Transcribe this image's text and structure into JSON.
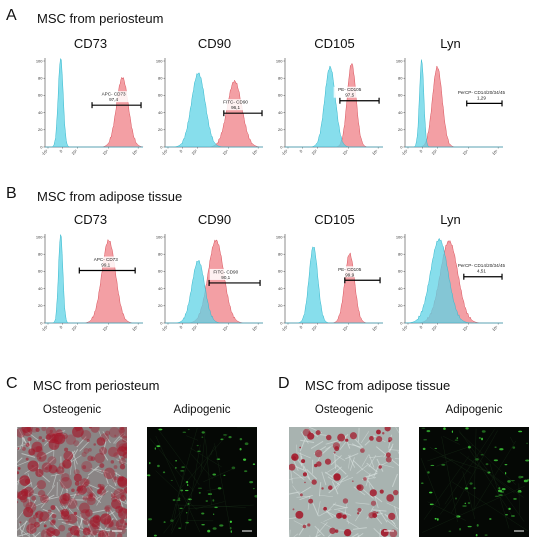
{
  "panelA": {
    "letter": "A",
    "title": "MSC from periosteum",
    "markers": [
      {
        "name": "CD73",
        "gate_label": "APC- CD73",
        "gate_value": "97,4"
      },
      {
        "name": "CD90",
        "gate_label": "FITC- CD90",
        "gate_value": "96,1"
      },
      {
        "name": "CD105",
        "gate_label": "PE- CD105",
        "gate_value": "97,5"
      },
      {
        "name": "Lyn",
        "gate_label": "PerCP- CD14/20/34/45",
        "gate_value": "1,29"
      }
    ]
  },
  "panelB": {
    "letter": "B",
    "title": "MSC from adipose tissue",
    "markers": [
      {
        "name": "CD73",
        "gate_label": "APC- CD73",
        "gate_value": "99,1"
      },
      {
        "name": "CD90",
        "gate_label": "FITC- CD90",
        "gate_value": "90,1"
      },
      {
        "name": "CD105",
        "gate_label": "PE- CD105",
        "gate_value": "99,9"
      },
      {
        "name": "Lyn",
        "gate_label": "PerCP- CD14/20/34/45",
        "gate_value": "4,51"
      }
    ]
  },
  "panelC": {
    "letter": "C",
    "title": "MSC from periosteum",
    "labels": [
      "Osteogenic",
      "Adipogenic"
    ]
  },
  "panelD": {
    "letter": "D",
    "title": "MSC from adipose tissue",
    "labels": [
      "Osteogenic",
      "Adipogenic"
    ]
  },
  "histogram_axis": {
    "y_ticks": [
      "100",
      "80",
      "60",
      "40",
      "20",
      "0"
    ],
    "x_ticks": [
      "-10³",
      "0",
      "10³",
      "10⁴",
      "10⁵"
    ]
  },
  "colors": {
    "isotype": "#5fd3e6",
    "stained": "#ef7f86",
    "osteogenic_stain": "#a3182a",
    "adipogenic_stain": "#3fd23a"
  },
  "chart_data": [
    {
      "type": "area",
      "panel": "A",
      "marker": "CD73",
      "ylim": [
        0,
        100
      ],
      "isotype_peak": "0",
      "stained_peak": "10⁵",
      "gated_percent": 97.4
    },
    {
      "type": "area",
      "panel": "A",
      "marker": "CD90",
      "ylim": [
        0,
        100
      ],
      "isotype_peak": "10³",
      "stained_peak": "10⁴",
      "gated_percent": 96.1
    },
    {
      "type": "area",
      "panel": "A",
      "marker": "CD105",
      "ylim": [
        0,
        100
      ],
      "isotype_peak": "10³",
      "stained_peak": "10⁴",
      "gated_percent": 97.5
    },
    {
      "type": "area",
      "panel": "A",
      "marker": "Lyn",
      "ylim": [
        0,
        100
      ],
      "isotype_peak": "0",
      "stained_peak": "10³",
      "gated_percent": 1.29
    },
    {
      "type": "area",
      "panel": "B",
      "marker": "CD73",
      "ylim": [
        0,
        100
      ],
      "isotype_peak": "0",
      "stained_peak": "10⁴",
      "gated_percent": 99.1
    },
    {
      "type": "area",
      "panel": "B",
      "marker": "CD90",
      "ylim": [
        0,
        100
      ],
      "isotype_peak": "10³",
      "stained_peak": "10⁴",
      "gated_percent": 90.1
    },
    {
      "type": "area",
      "panel": "B",
      "marker": "CD105",
      "ylim": [
        0,
        100
      ],
      "isotype_peak": "0",
      "stained_peak": "10⁴",
      "gated_percent": 99.9
    },
    {
      "type": "area",
      "panel": "B",
      "marker": "Lyn",
      "ylim": [
        0,
        100
      ],
      "isotype_peak": "10³",
      "stained_peak": "10³",
      "gated_percent": 4.51
    }
  ]
}
